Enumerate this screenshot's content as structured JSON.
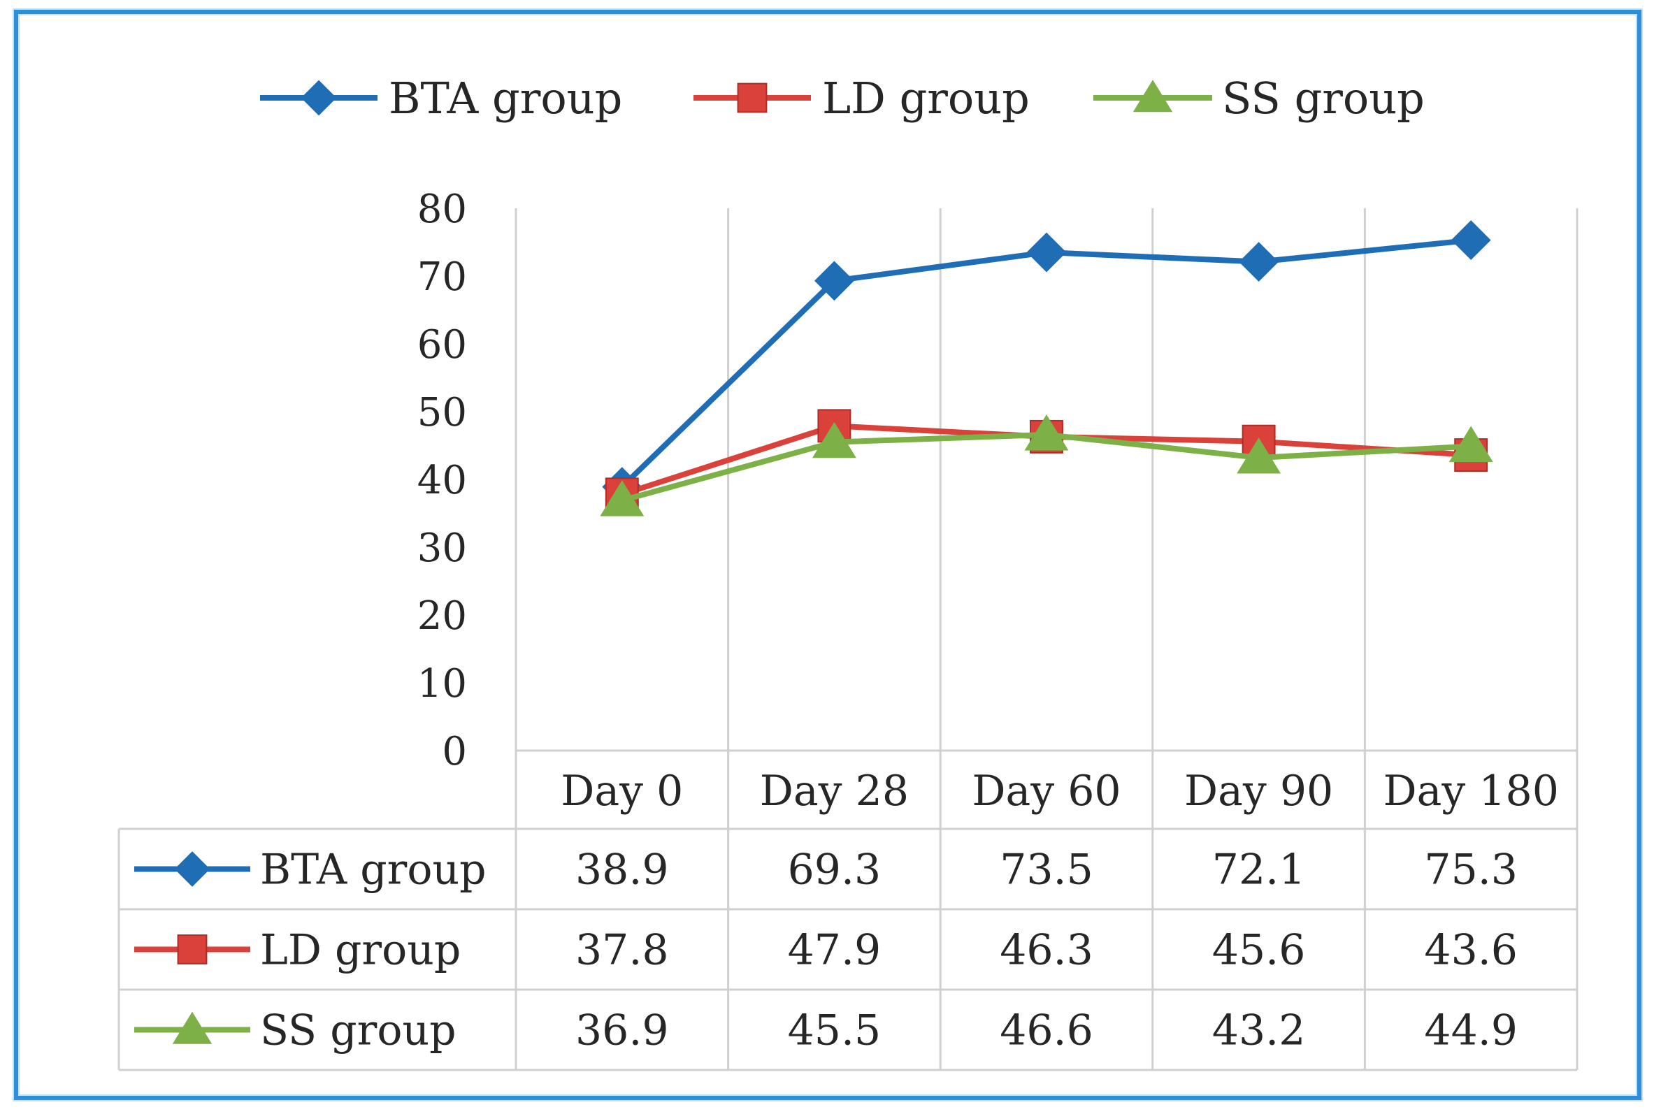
{
  "chart_data": {
    "type": "line",
    "categories": [
      "Day 0",
      "Day 28",
      "Day 60",
      "Day 90",
      "Day 180"
    ],
    "series": [
      {
        "name": "BTA group",
        "values": [
          38.9,
          69.3,
          73.5,
          72.1,
          75.3
        ],
        "color": "#1f6db5",
        "marker": "diamond"
      },
      {
        "name": "LD group",
        "values": [
          37.8,
          47.9,
          46.3,
          45.6,
          43.6
        ],
        "color": "#d9413a",
        "marker": "square"
      },
      {
        "name": "SS group",
        "values": [
          36.9,
          45.5,
          46.6,
          43.2,
          44.9
        ],
        "color": "#7db046",
        "marker": "triangle"
      }
    ],
    "yticks": [
      "0",
      "10",
      "20",
      "30",
      "40",
      "50",
      "60",
      "70",
      "80"
    ],
    "ylim": [
      0,
      80
    ],
    "grid": "vertical",
    "legend": "top",
    "table": {
      "rows": [
        {
          "label": "BTA group",
          "cells": [
            "38.9",
            "69.3",
            "73.5",
            "72.1",
            "75.3"
          ]
        },
        {
          "label": "LD group",
          "cells": [
            "37.8",
            "47.9",
            "46.3",
            "45.6",
            "43.6"
          ]
        },
        {
          "label": "SS group",
          "cells": [
            "36.9",
            "45.5",
            "46.6",
            "43.2",
            "44.9"
          ]
        }
      ]
    }
  }
}
